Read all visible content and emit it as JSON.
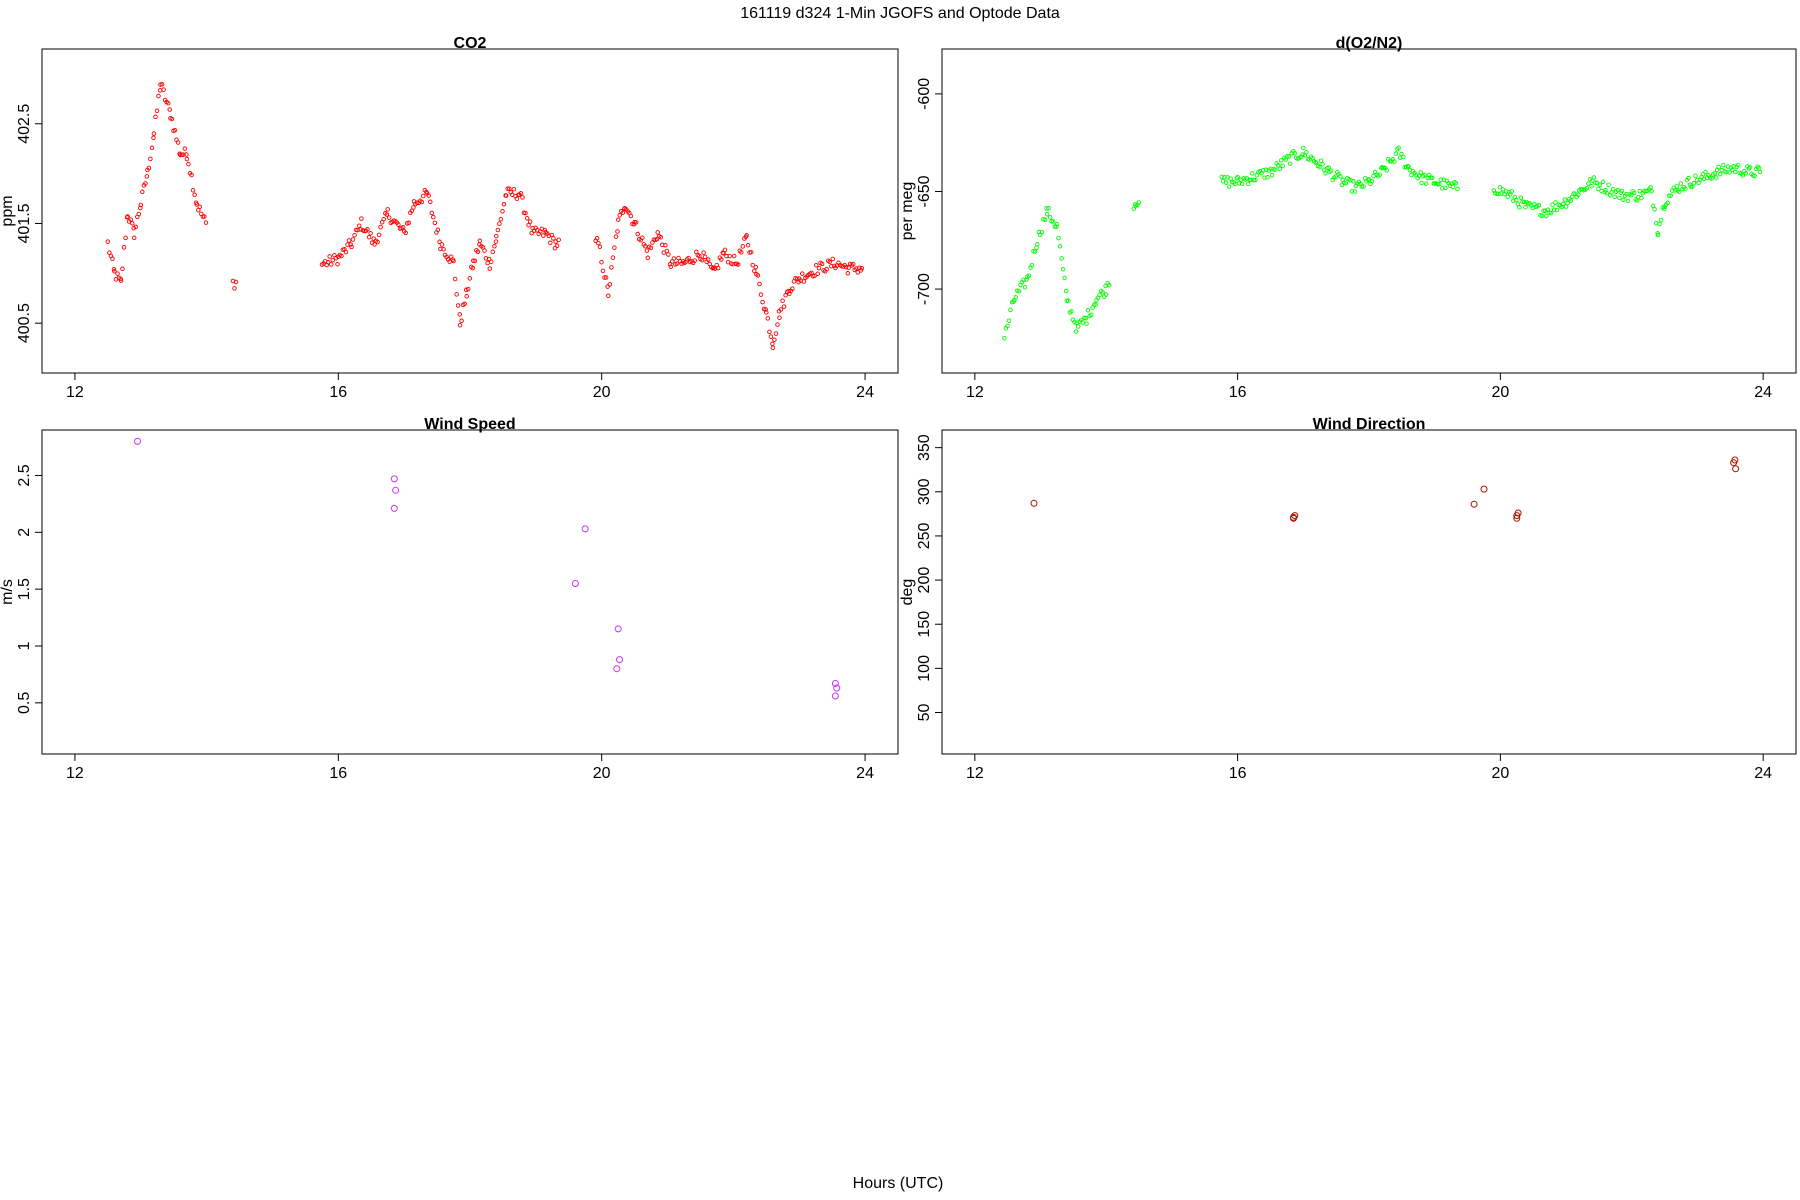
{
  "figure": {
    "title": "161119   d324   1-Min  JGOFS and Optode Data",
    "xlabel": "Hours (UTC)"
  },
  "chart_data": [
    {
      "id": "co2",
      "type": "scatter",
      "title": "CO2",
      "xlabel": "",
      "ylabel": "ppm",
      "xlim": [
        11.5,
        24.5
      ],
      "ylim": [
        400.0,
        403.25
      ],
      "xticks": [
        12,
        16,
        20,
        24
      ],
      "yticks": [
        400.5,
        401.5,
        402.5
      ],
      "grid": false,
      "marker_color": "#ff0000",
      "anchors": [
        [
          12.5,
          401.3
        ],
        [
          12.6,
          401.0
        ],
        [
          12.7,
          400.9
        ],
        [
          12.8,
          401.6
        ],
        [
          12.9,
          401.4
        ],
        [
          13.0,
          401.7
        ],
        [
          13.1,
          402.0
        ],
        [
          13.2,
          402.4
        ],
        [
          13.3,
          402.9
        ],
        [
          13.45,
          402.6
        ],
        [
          13.6,
          402.2
        ],
        [
          13.7,
          402.2
        ],
        [
          13.85,
          401.7
        ],
        [
          14.4,
          400.9
        ],
        [
          15.8,
          401.1
        ],
        [
          16.0,
          401.15
        ],
        [
          16.2,
          401.3
        ],
        [
          16.35,
          401.5
        ],
        [
          16.55,
          401.3
        ],
        [
          16.75,
          401.6
        ],
        [
          17.0,
          401.4
        ],
        [
          17.15,
          401.7
        ],
        [
          17.35,
          401.8
        ],
        [
          17.55,
          401.3
        ],
        [
          17.75,
          401.1
        ],
        [
          17.85,
          400.5
        ],
        [
          17.95,
          400.8
        ],
        [
          18.05,
          401.1
        ],
        [
          18.15,
          401.3
        ],
        [
          18.3,
          401.1
        ],
        [
          18.4,
          401.35
        ],
        [
          18.55,
          401.8
        ],
        [
          18.75,
          401.8
        ],
        [
          18.95,
          401.4
        ],
        [
          19.15,
          401.4
        ],
        [
          19.3,
          401.3
        ],
        [
          19.95,
          401.3
        ],
        [
          20.1,
          400.8
        ],
        [
          20.25,
          401.5
        ],
        [
          20.35,
          401.7
        ],
        [
          20.5,
          401.5
        ],
        [
          20.7,
          401.2
        ],
        [
          20.85,
          401.4
        ],
        [
          21.05,
          401.1
        ],
        [
          21.25,
          401.1
        ],
        [
          21.5,
          401.2
        ],
        [
          21.7,
          401.0
        ],
        [
          21.85,
          401.2
        ],
        [
          22.05,
          401.1
        ],
        [
          22.2,
          401.35
        ],
        [
          22.35,
          401.0
        ],
        [
          22.5,
          400.6
        ],
        [
          22.6,
          400.3
        ],
        [
          22.7,
          400.6
        ],
        [
          22.85,
          400.85
        ],
        [
          23.0,
          400.95
        ],
        [
          23.3,
          401.05
        ],
        [
          23.55,
          401.1
        ],
        [
          23.75,
          401.05
        ],
        [
          23.95,
          401.05
        ]
      ],
      "gaps": [
        [
          14.0,
          14.4
        ],
        [
          14.45,
          15.75
        ],
        [
          19.35,
          19.9
        ]
      ]
    },
    {
      "id": "do2n2",
      "type": "scatter",
      "title": "d(O2/N2)",
      "xlabel": "",
      "ylabel": "per meg",
      "xlim": [
        11.5,
        24.5
      ],
      "ylim": [
        -743,
        -577
      ],
      "xticks": [
        12,
        16,
        20,
        24
      ],
      "yticks": [
        -700,
        -650,
        -600
      ],
      "grid": false,
      "marker_color": "#00ff00",
      "anchors": [
        [
          12.45,
          -725
        ],
        [
          12.6,
          -705
        ],
        [
          12.8,
          -695
        ],
        [
          12.95,
          -675
        ],
        [
          13.1,
          -660
        ],
        [
          13.25,
          -668
        ],
        [
          13.4,
          -705
        ],
        [
          13.55,
          -720
        ],
        [
          13.7,
          -715
        ],
        [
          13.85,
          -705
        ],
        [
          14.0,
          -700
        ],
        [
          14.45,
          -655
        ],
        [
          15.8,
          -645
        ],
        [
          16.0,
          -645
        ],
        [
          16.2,
          -643
        ],
        [
          16.5,
          -640
        ],
        [
          16.8,
          -633
        ],
        [
          17.0,
          -630
        ],
        [
          17.2,
          -635
        ],
        [
          17.4,
          -640
        ],
        [
          17.6,
          -645
        ],
        [
          17.8,
          -648
        ],
        [
          18.0,
          -645
        ],
        [
          18.2,
          -640
        ],
        [
          18.45,
          -630
        ],
        [
          18.6,
          -638
        ],
        [
          18.8,
          -643
        ],
        [
          19.0,
          -645
        ],
        [
          19.3,
          -648
        ],
        [
          19.9,
          -648
        ],
        [
          20.15,
          -652
        ],
        [
          20.4,
          -658
        ],
        [
          20.7,
          -660
        ],
        [
          21.0,
          -655
        ],
        [
          21.2,
          -650
        ],
        [
          21.4,
          -645
        ],
        [
          21.6,
          -648
        ],
        [
          21.85,
          -652
        ],
        [
          22.1,
          -652
        ],
        [
          22.3,
          -650
        ],
        [
          22.4,
          -670
        ],
        [
          22.5,
          -655
        ],
        [
          22.7,
          -648
        ],
        [
          22.9,
          -645
        ],
        [
          23.1,
          -643
        ],
        [
          23.3,
          -640
        ],
        [
          23.55,
          -638
        ],
        [
          23.8,
          -640
        ],
        [
          23.95,
          -640
        ]
      ],
      "gaps": [
        [
          14.05,
          14.4
        ],
        [
          14.5,
          15.75
        ],
        [
          19.35,
          19.9
        ]
      ]
    },
    {
      "id": "wind-speed",
      "type": "scatter",
      "title": "Wind Speed",
      "xlabel": "",
      "ylabel": "m/s",
      "xlim": [
        11.5,
        24.5
      ],
      "ylim": [
        0.05,
        2.9
      ],
      "xticks": [
        12,
        16,
        20,
        24
      ],
      "yticks": [
        0.5,
        1.0,
        1.5,
        2.0,
        2.5
      ],
      "grid": false,
      "marker_color": "#cc33ff",
      "x": [
        12.95,
        16.85,
        16.87,
        16.85,
        19.6,
        19.75,
        20.25,
        20.27,
        20.23,
        23.55,
        23.57,
        23.55
      ],
      "y": [
        2.8,
        2.47,
        2.37,
        2.21,
        1.55,
        2.03,
        1.15,
        0.88,
        0.8,
        0.67,
        0.63,
        0.56
      ]
    },
    {
      "id": "wind-direction",
      "type": "scatter",
      "title": "Wind Direction",
      "xlabel": "",
      "ylabel": "deg",
      "xticks": [
        12,
        16,
        20,
        24
      ],
      "yticks": [
        50,
        100,
        150,
        200,
        250,
        300,
        350
      ],
      "xlim": [
        11.5,
        24.5
      ],
      "ylim": [
        3,
        370
      ],
      "grid": false,
      "marker_color": "#aa1100",
      "x": [
        12.9,
        16.85,
        16.87,
        16.85,
        19.6,
        19.75,
        20.25,
        20.27,
        20.25,
        23.55,
        23.57,
        23.58
      ],
      "y": [
        287,
        270,
        273,
        271,
        286,
        303,
        270,
        276,
        273,
        333,
        336,
        326
      ]
    }
  ]
}
